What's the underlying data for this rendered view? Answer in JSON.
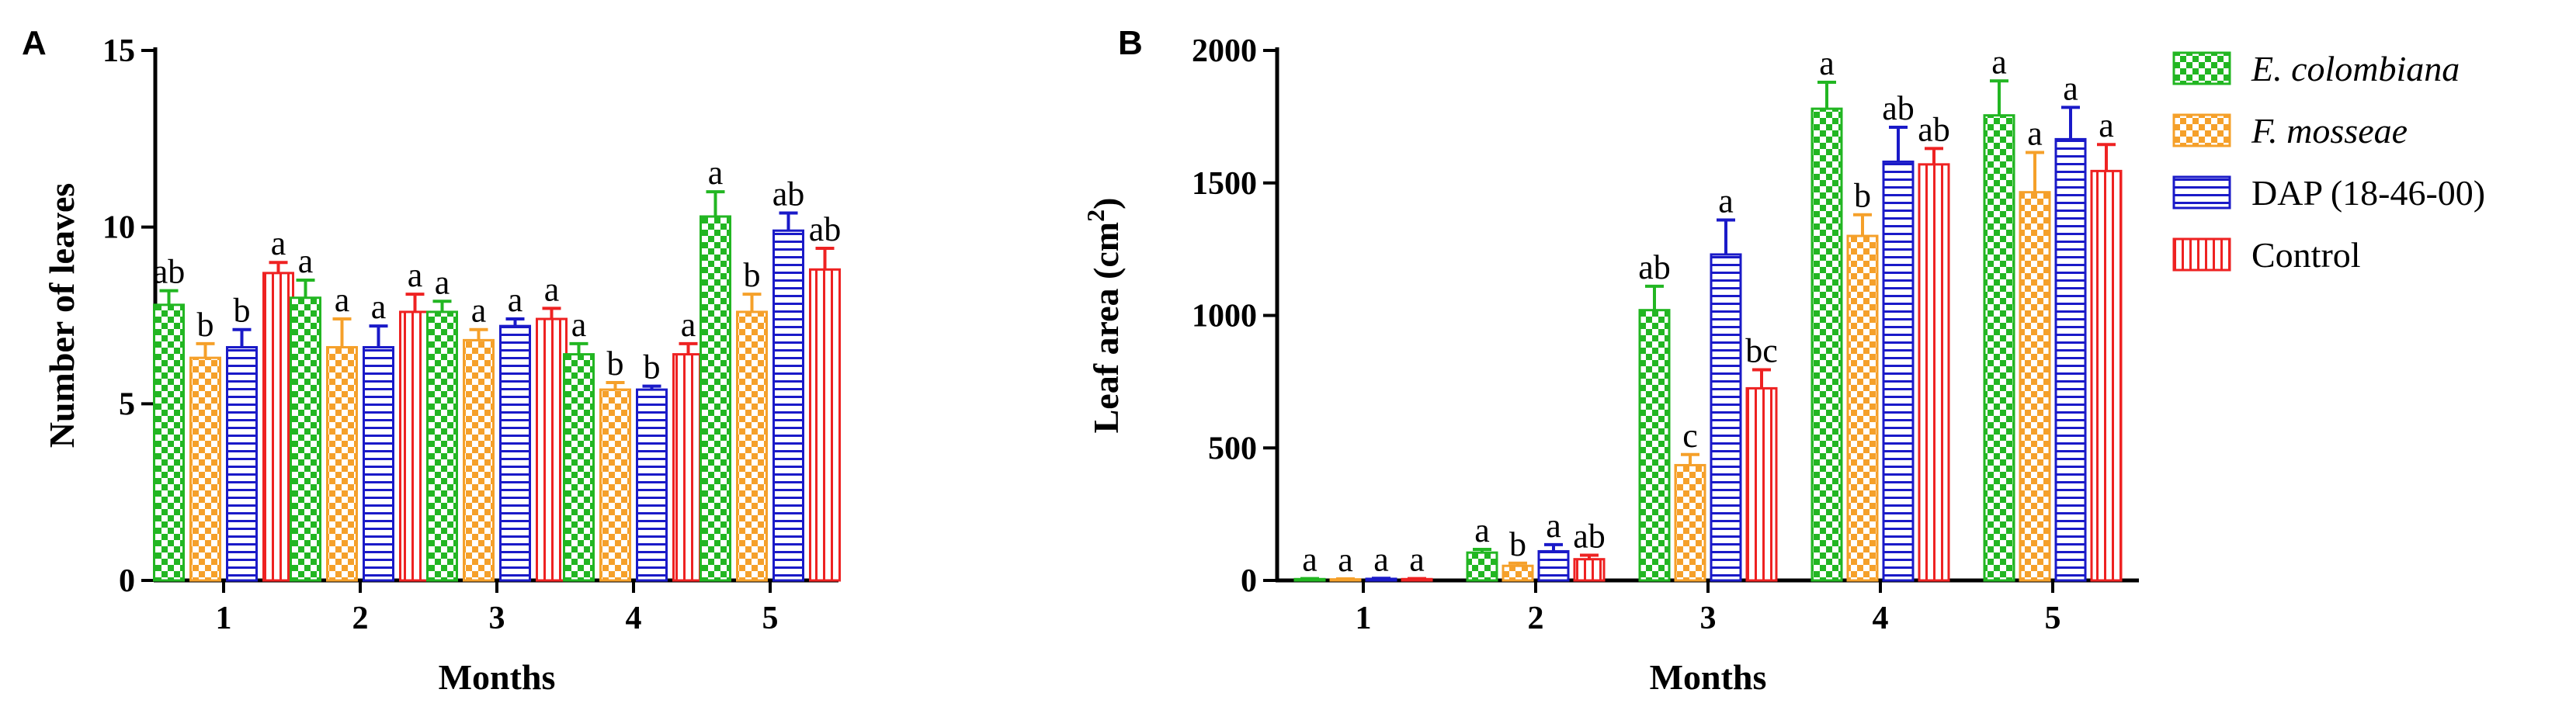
{
  "colors": {
    "E. colombiana": "#22b622",
    "F. mosseae": "#f5a02a",
    "DAP (18-46-00)": "#1a1ac8",
    "Control": "#ee2222"
  },
  "legend": [
    {
      "label": "E. colombiana",
      "italic": true,
      "pattern": "checker"
    },
    {
      "label": "F. mosseae",
      "italic": true,
      "pattern": "checker"
    },
    {
      "label": "DAP (18-46-00)",
      "italic": false,
      "pattern": "hstripes"
    },
    {
      "label": "Control",
      "italic": false,
      "pattern": "vstripes"
    }
  ],
  "chart_data": [
    {
      "panel": "A",
      "type": "bar",
      "xlabel": "Months",
      "ylabel": "Number of leaves",
      "categories": [
        "1",
        "2",
        "3",
        "4",
        "5"
      ],
      "ylim": [
        0,
        15
      ],
      "yticks": [
        "0",
        "5",
        "10",
        "15"
      ],
      "series": [
        {
          "name": "E. colombiana",
          "values": [
            7.8,
            8.0,
            7.6,
            6.4,
            10.3
          ],
          "errors": [
            0.4,
            0.5,
            0.3,
            0.3,
            0.7
          ],
          "letters": [
            "ab",
            "a",
            "a",
            "a",
            "a"
          ]
        },
        {
          "name": "F. mosseae",
          "values": [
            6.3,
            6.6,
            6.8,
            5.4,
            7.6
          ],
          "errors": [
            0.4,
            0.8,
            0.3,
            0.2,
            0.5
          ],
          "letters": [
            "b",
            "a",
            "a",
            "b",
            "b"
          ]
        },
        {
          "name": "DAP (18-46-00)",
          "values": [
            6.6,
            6.6,
            7.2,
            5.4,
            9.9
          ],
          "errors": [
            0.5,
            0.6,
            0.2,
            0.1,
            0.5
          ],
          "letters": [
            "b",
            "a",
            "a",
            "b",
            "ab"
          ]
        },
        {
          "name": "Control",
          "values": [
            8.7,
            7.6,
            7.4,
            6.4,
            8.8
          ],
          "errors": [
            0.3,
            0.5,
            0.3,
            0.3,
            0.6
          ],
          "letters": [
            "a",
            "a",
            "a",
            "a",
            "ab"
          ]
        }
      ]
    },
    {
      "panel": "B",
      "type": "bar",
      "xlabel": "Months",
      "ylabel": "Leaf area (cm",
      "ylabel_sup": "2",
      "ylabel_end": ")",
      "categories": [
        "1",
        "2",
        "3",
        "4",
        "5"
      ],
      "ylim": [
        0,
        2000
      ],
      "yticks": [
        "0",
        "500",
        "1000",
        "1500",
        "2000"
      ],
      "series": [
        {
          "name": "E. colombiana",
          "values": [
            5,
            105,
            1020,
            1780,
            1755
          ],
          "errors": [
            2,
            12,
            90,
            100,
            130
          ],
          "letters": [
            "a",
            "a",
            "ab",
            "a",
            "a"
          ]
        },
        {
          "name": "F. mosseae",
          "values": [
            4,
            55,
            435,
            1300,
            1465
          ],
          "errors": [
            2,
            10,
            40,
            80,
            150
          ],
          "letters": [
            "a",
            "b",
            "c",
            "b",
            "a"
          ]
        },
        {
          "name": "DAP (18-46-00)",
          "values": [
            6,
            110,
            1230,
            1580,
            1665
          ],
          "errors": [
            2,
            25,
            130,
            130,
            120
          ],
          "letters": [
            "a",
            "a",
            "a",
            "ab",
            "a"
          ]
        },
        {
          "name": "Control",
          "values": [
            5,
            80,
            725,
            1570,
            1545
          ],
          "errors": [
            2,
            15,
            70,
            60,
            100
          ],
          "letters": [
            "a",
            "ab",
            "bc",
            "ab",
            "a"
          ]
        }
      ]
    }
  ]
}
